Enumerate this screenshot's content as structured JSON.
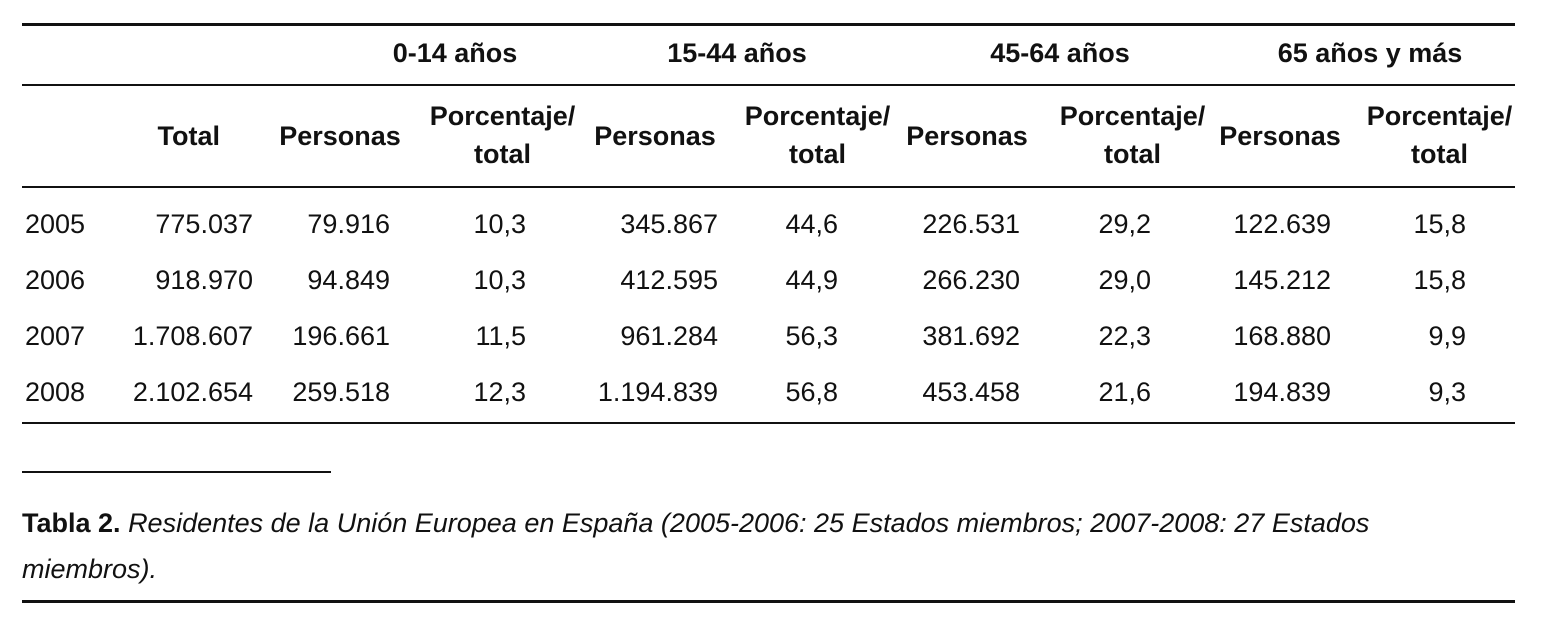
{
  "table": {
    "groups": [
      "0-14 años",
      "15-44 años",
      "45-64 años",
      "65 años y más"
    ],
    "col_headers": {
      "total": "Total",
      "personas": "Personas",
      "porcentaje_line1": "Porcentaje/",
      "porcentaje_line2": "total"
    },
    "rows": [
      {
        "year": "2005",
        "total": "775.037",
        "v": [
          "79.916",
          "10,3",
          "345.867",
          "44,6",
          "226.531",
          "29,2",
          "122.639",
          "15,8"
        ]
      },
      {
        "year": "2006",
        "total": "918.970",
        "v": [
          "94.849",
          "10,3",
          "412.595",
          "44,9",
          "266.230",
          "29,0",
          "145.212",
          "15,8"
        ]
      },
      {
        "year": "2007",
        "total": "1.708.607",
        "v": [
          "196.661",
          "11,5",
          "961.284",
          "56,3",
          "381.692",
          "22,3",
          "168.880",
          "9,9"
        ]
      },
      {
        "year": "2008",
        "total": "2.102.654",
        "v": [
          "259.518",
          "12,3",
          "1.194.839",
          "56,8",
          "453.458",
          "21,6",
          "194.839",
          "9,3"
        ]
      }
    ]
  },
  "caption": {
    "label": "Tabla 2.",
    "text": "Residentes de la Unión Europea en España (2005-2006: 25 Estados miembros; 2007-2008: 27 Estados miembros)."
  }
}
